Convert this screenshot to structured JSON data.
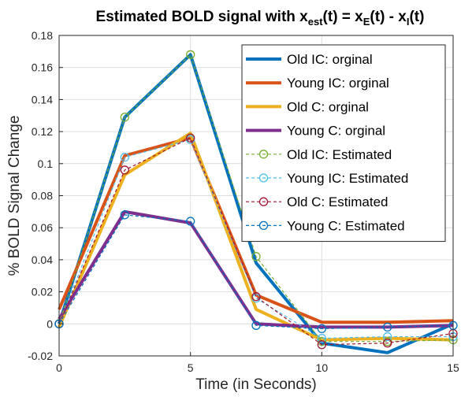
{
  "chart_data": {
    "type": "line",
    "title": {
      "prefix": "Estimated BOLD signal with x",
      "sub1": "est",
      "mid1": "(t) = x",
      "sub2": "E",
      "mid2": "(t) - x",
      "sub3": "I",
      "suffix": "(t)"
    },
    "xlabel": "Time (in Seconds)",
    "ylabel": "% BOLD Signal Change",
    "xlim": [
      0,
      15
    ],
    "ylim": [
      -0.02,
      0.18
    ],
    "xticks": [
      0,
      5,
      10,
      15
    ],
    "yticks": [
      -0.02,
      0,
      0.02,
      0.04,
      0.06,
      0.08,
      0.1,
      0.12,
      0.14,
      0.16,
      0.18
    ],
    "ytick_labels": [
      "-0.02",
      "0",
      "0.02",
      "0.04",
      "0.06",
      "0.08",
      "0.1",
      "0.12",
      "0.14",
      "0.16",
      "0.18"
    ],
    "grid": true,
    "legend_position": "top-right",
    "x": [
      0,
      2.5,
      5,
      7.5,
      10,
      12.5,
      15
    ],
    "series": [
      {
        "name": "Old IC: orginal",
        "style": "solid",
        "color": "#0072BD",
        "values": [
          0,
          0.129,
          0.168,
          0.038,
          -0.012,
          -0.018,
          0.0
        ]
      },
      {
        "name": "Young IC: orginal",
        "style": "solid",
        "color": "#D95319",
        "values": [
          0.009,
          0.105,
          0.116,
          0.018,
          0.001,
          0.001,
          0.002
        ]
      },
      {
        "name": "Old C: orginal",
        "style": "solid",
        "color": "#EDB120",
        "values": [
          -0.002,
          0.093,
          0.119,
          0.009,
          -0.01,
          -0.009,
          -0.01
        ]
      },
      {
        "name": "Young C: orginal",
        "style": "solid",
        "color": "#7E2F8E",
        "values": [
          0.003,
          0.07,
          0.063,
          0.0,
          -0.002,
          -0.002,
          -0.001
        ]
      },
      {
        "name": "Old IC: Estimated",
        "style": "dashed-marker",
        "color": "#77AC30",
        "values": [
          0,
          0.129,
          0.168,
          0.042,
          -0.011,
          -0.011,
          -0.01
        ]
      },
      {
        "name": "Young IC: Estimated",
        "style": "dashed-marker",
        "color": "#4DBEEE",
        "values": [
          0,
          0.104,
          0.115,
          0.016,
          -0.009,
          -0.008,
          -0.008
        ]
      },
      {
        "name": "Old C: Estimated",
        "style": "dashed-marker",
        "color": "#A2142F",
        "values": [
          0,
          0.096,
          0.116,
          0.017,
          -0.013,
          -0.012,
          -0.006
        ]
      },
      {
        "name": "Young C: Estimated",
        "style": "dashed-marker",
        "color": "#0072BD",
        "values": [
          0,
          0.068,
          0.064,
          -0.001,
          -0.003,
          -0.002,
          -0.001
        ]
      }
    ]
  }
}
